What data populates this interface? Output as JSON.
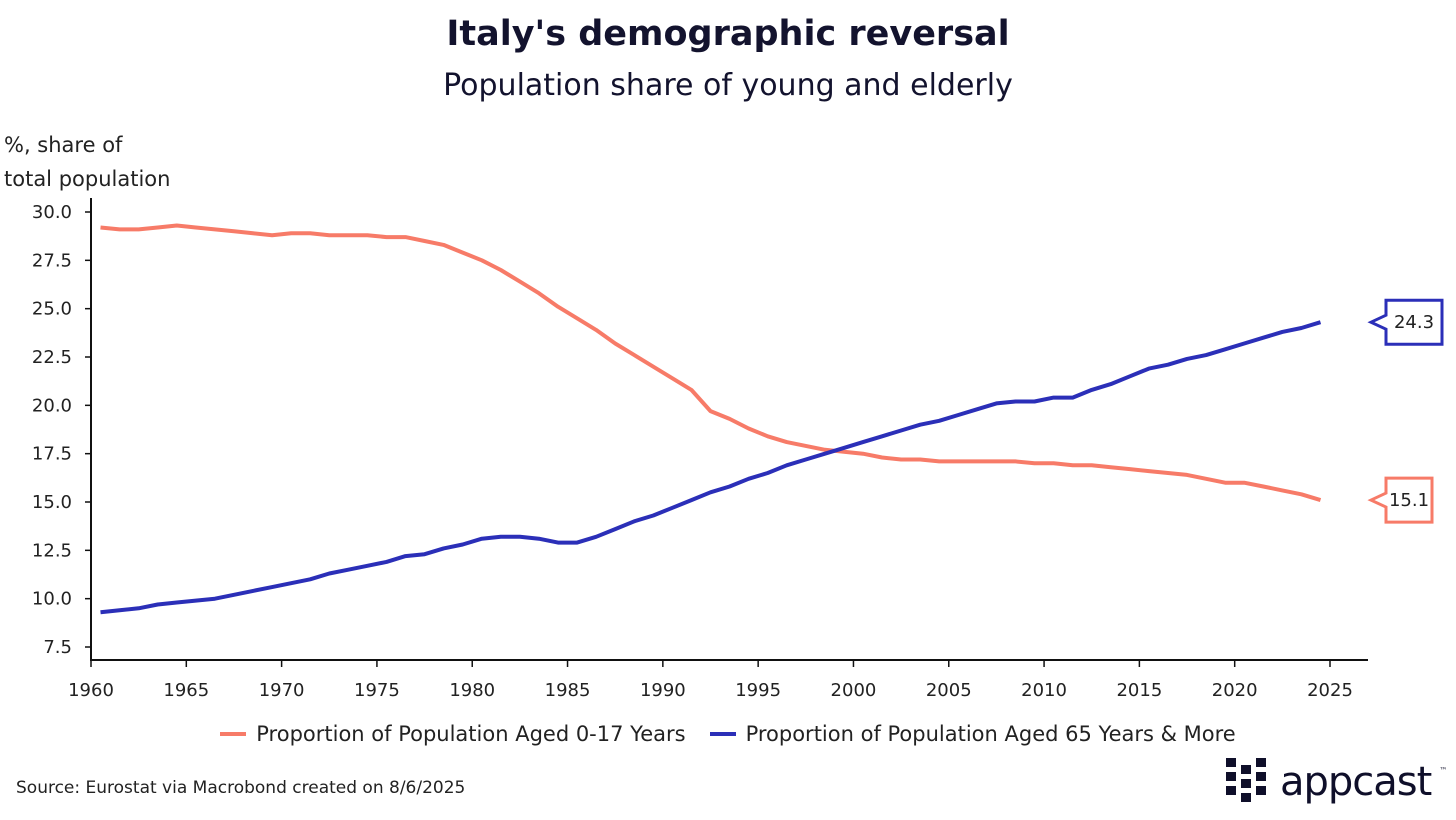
{
  "chart_data": {
    "type": "line",
    "title": "Italy's demographic reversal",
    "subtitle": "Population share of young and elderly",
    "ylabel": "%, share of total population",
    "ylabel_lines": [
      "%, share of",
      "total population"
    ],
    "xlabel": "",
    "xlim": [
      1960,
      2025
    ],
    "ylim": [
      7.5,
      30.0
    ],
    "xticks": [
      "1960",
      "1965",
      "1970",
      "1975",
      "1980",
      "1985",
      "1990",
      "1995",
      "2000",
      "2005",
      "2010",
      "2015",
      "2020",
      "2025"
    ],
    "yticks": [
      "7.5",
      "10.0",
      "12.5",
      "15.0",
      "17.5",
      "20.0",
      "22.5",
      "25.0",
      "27.5",
      "30.0"
    ],
    "grid": false,
    "legend_position": "bottom",
    "x_start": 1960,
    "series": [
      {
        "name": "Proportion of Population Aged 0-17 Years",
        "color": "#f77b68",
        "end_label": "15.1",
        "values": [
          29.2,
          29.1,
          29.1,
          29.2,
          29.3,
          29.2,
          29.1,
          29.0,
          28.9,
          28.8,
          28.9,
          28.9,
          28.8,
          28.8,
          28.8,
          28.7,
          28.7,
          28.5,
          28.3,
          27.9,
          27.5,
          27.0,
          26.4,
          25.8,
          25.1,
          24.5,
          23.9,
          23.2,
          22.6,
          22.0,
          21.4,
          20.8,
          19.7,
          19.3,
          18.8,
          18.4,
          18.1,
          17.9,
          17.7,
          17.6,
          17.5,
          17.3,
          17.2,
          17.2,
          17.1,
          17.1,
          17.1,
          17.1,
          17.1,
          17.0,
          17.0,
          16.9,
          16.9,
          16.8,
          16.7,
          16.6,
          16.5,
          16.4,
          16.2,
          16.0,
          16.0,
          15.8,
          15.6,
          15.4,
          15.1
        ]
      },
      {
        "name": "Proportion of Population Aged 65 Years & More",
        "color": "#2b2fb8",
        "end_label": "24.3",
        "values": [
          9.3,
          9.4,
          9.5,
          9.7,
          9.8,
          9.9,
          10.0,
          10.2,
          10.4,
          10.6,
          10.8,
          11.0,
          11.3,
          11.5,
          11.7,
          11.9,
          12.2,
          12.3,
          12.6,
          12.8,
          13.1,
          13.2,
          13.2,
          13.1,
          12.9,
          12.9,
          13.2,
          13.6,
          14.0,
          14.3,
          14.7,
          15.1,
          15.5,
          15.8,
          16.2,
          16.5,
          16.9,
          17.2,
          17.5,
          17.8,
          18.1,
          18.4,
          18.7,
          19.0,
          19.2,
          19.5,
          19.8,
          20.1,
          20.2,
          20.2,
          20.4,
          20.4,
          20.8,
          21.1,
          21.5,
          21.9,
          22.1,
          22.4,
          22.6,
          22.9,
          23.2,
          23.5,
          23.8,
          24.0,
          24.3
        ]
      }
    ]
  },
  "source": "Source: Eurostat via Macrobond created on 8/6/2025",
  "logo": {
    "text": "appcast",
    "tm": "™",
    "color": "#0f0f2a"
  }
}
